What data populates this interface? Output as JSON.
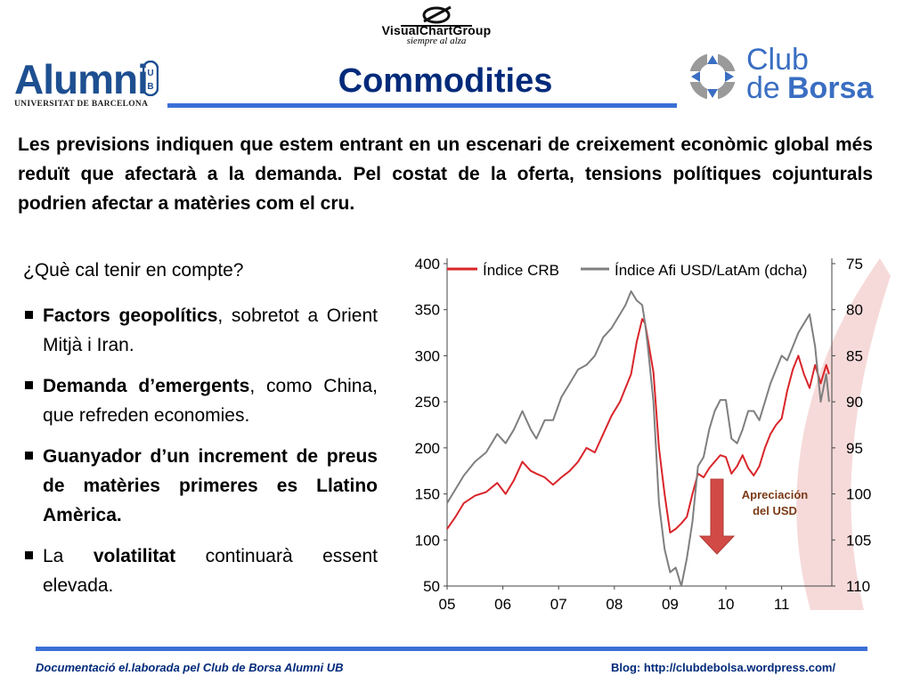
{
  "header": {
    "vcg_name": "VisualChartGroup",
    "vcg_tagline": "siempre al alza",
    "alumni_name": "Alumni",
    "alumni_badge": "UB",
    "alumni_sub": "UNIVERSITAT DE BARCELONA",
    "club_word": "Club",
    "club_de": "de",
    "club_borsa": "Borsa",
    "title": "Commodities"
  },
  "intro": "Les previsions indiquen que estem entrant en un escenari de creixement econòmic global més reduït que afectarà a la demanda. Pel costat de la oferta, tensions polítiques cojunturals podrien afectar a matèries com el cru.",
  "question": "¿Què cal tenir en compte?",
  "bullets": [
    {
      "bold": "Factors geopolítics",
      "rest": ", sobretot a Orient Mitjà i Iran."
    },
    {
      "bold": "Demanda d’emergents",
      "rest": ", como China, que refreden economies."
    },
    {
      "bold": "Guanyador d’un increment de preus de matèries primeres es Llatino Amèrica.",
      "rest": ""
    },
    {
      "pre": "La ",
      "bold": "volatilitat",
      "rest": " continuarà essent elevada."
    }
  ],
  "chart_data": {
    "type": "line",
    "title": "",
    "xlabel": "",
    "ylabel": "",
    "x_ticks": [
      "05",
      "06",
      "07",
      "08",
      "09",
      "10",
      "11"
    ],
    "xlim": [
      2005,
      2011.9
    ],
    "y_left": {
      "ticks": [
        "400",
        "350",
        "300",
        "250",
        "200",
        "150",
        "100",
        "50"
      ],
      "range": [
        50,
        400
      ]
    },
    "y_right": {
      "ticks": [
        "75",
        "80",
        "85",
        "90",
        "95",
        "100",
        "105",
        "110"
      ],
      "range": [
        75,
        110
      ],
      "inverted": true
    },
    "legend_placement": "top",
    "annotation": "Apreciación del USD",
    "series": [
      {
        "name": "Índice CRB",
        "color": "#d9252a",
        "axis": "left",
        "x": [
          2005.0,
          2005.15,
          2005.3,
          2005.5,
          2005.7,
          2005.9,
          2006.05,
          2006.2,
          2006.35,
          2006.5,
          2006.6,
          2006.75,
          2006.9,
          2007.05,
          2007.2,
          2007.35,
          2007.5,
          2007.65,
          2007.8,
          2007.95,
          2008.1,
          2008.2,
          2008.3,
          2008.4,
          2008.5,
          2008.55,
          2008.6,
          2008.7,
          2008.8,
          2008.9,
          2009.0,
          2009.1,
          2009.2,
          2009.3,
          2009.4,
          2009.5,
          2009.6,
          2009.7,
          2009.8,
          2009.9,
          2010.0,
          2010.1,
          2010.2,
          2010.3,
          2010.4,
          2010.5,
          2010.6,
          2010.7,
          2010.8,
          2010.9,
          2011.0,
          2011.1,
          2011.2,
          2011.3,
          2011.4,
          2011.5,
          2011.6,
          2011.7,
          2011.8,
          2011.85
        ],
        "y": [
          112,
          125,
          140,
          148,
          152,
          162,
          150,
          165,
          185,
          175,
          172,
          168,
          160,
          168,
          175,
          185,
          200,
          195,
          215,
          235,
          250,
          265,
          280,
          315,
          340,
          335,
          318,
          282,
          200,
          150,
          108,
          112,
          118,
          125,
          150,
          172,
          168,
          178,
          185,
          192,
          190,
          172,
          180,
          192,
          178,
          170,
          180,
          200,
          215,
          225,
          232,
          262,
          285,
          300,
          280,
          265,
          290,
          270,
          290,
          280
        ]
      },
      {
        "name": "Índice Afi USD/LatAm (dcha)",
        "color": "#7f7f7f",
        "axis": "right",
        "x": [
          2005.0,
          2005.15,
          2005.3,
          2005.5,
          2005.7,
          2005.9,
          2006.05,
          2006.2,
          2006.35,
          2006.5,
          2006.6,
          2006.75,
          2006.9,
          2007.05,
          2007.2,
          2007.35,
          2007.5,
          2007.65,
          2007.8,
          2007.95,
          2008.1,
          2008.2,
          2008.3,
          2008.4,
          2008.5,
          2008.55,
          2008.6,
          2008.7,
          2008.8,
          2008.9,
          2009.0,
          2009.1,
          2009.2,
          2009.3,
          2009.4,
          2009.5,
          2009.6,
          2009.7,
          2009.8,
          2009.9,
          2010.0,
          2010.1,
          2010.2,
          2010.3,
          2010.4,
          2010.5,
          2010.6,
          2010.7,
          2010.8,
          2010.9,
          2011.0,
          2011.1,
          2011.2,
          2011.3,
          2011.4,
          2011.5,
          2011.6,
          2011.7,
          2011.8,
          2011.85
        ],
        "y": [
          101,
          99.5,
          98,
          96.5,
          95.5,
          93.5,
          94.5,
          93,
          91,
          93,
          94,
          92,
          92,
          89.5,
          88,
          86.5,
          86,
          85,
          83,
          82,
          80.5,
          79.5,
          78,
          79,
          79.5,
          81.5,
          84,
          90,
          101,
          106,
          108.5,
          108,
          110,
          107,
          103,
          97,
          96,
          93,
          91,
          89.8,
          89.8,
          94,
          94.5,
          93,
          91,
          91,
          92,
          90,
          88,
          86.5,
          85,
          85.5,
          84,
          82.5,
          81.5,
          80.5,
          84,
          90,
          87,
          90
        ]
      }
    ]
  },
  "footer": {
    "left": "Documentació el.laborada pel Club de Borsa Alumni UB",
    "right": "Blog: http://clubdebolsa.wordpress.com/"
  },
  "colors": {
    "title": "#002a7a",
    "rule": "#3b6fd6",
    "club": "#3a6ec2",
    "alumni": "#1d4f91"
  }
}
